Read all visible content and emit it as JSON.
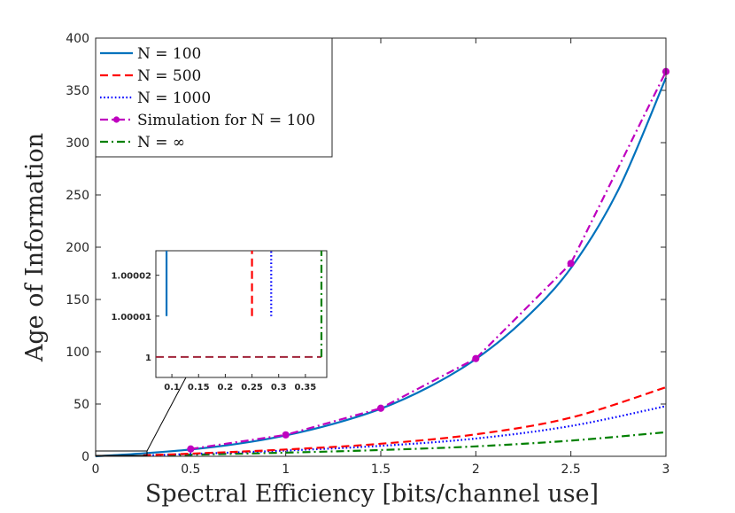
{
  "chart_data": {
    "type": "line",
    "xlabel": "Spectral Efficiency [bits/channel use]",
    "ylabel": "Age of Information",
    "xlim": [
      0,
      3
    ],
    "ylim": [
      0,
      400
    ],
    "xticks": [
      0,
      0.5,
      1,
      1.5,
      2,
      2.5,
      3
    ],
    "xtick_labels": [
      "0",
      "0.5",
      "1",
      "1.5",
      "2",
      "2.5",
      "3"
    ],
    "yticks": [
      0,
      50,
      100,
      150,
      200,
      250,
      300,
      350,
      400
    ],
    "ytick_labels": [
      "0",
      "50",
      "100",
      "150",
      "200",
      "250",
      "300",
      "350",
      "400"
    ],
    "legend_position": "top-left",
    "series": [
      {
        "name": "N = 100",
        "legend_label": "N = 100",
        "color": "#0072BD",
        "style": "solid",
        "marker": "none",
        "x": [
          0,
          0.25,
          0.5,
          0.75,
          1,
          1.25,
          1.5,
          1.75,
          2,
          2.25,
          2.5,
          2.75,
          3
        ],
        "y": [
          0,
          2.8,
          6.5,
          12.0,
          20.0,
          31.0,
          45.5,
          66.0,
          93.0,
          130.0,
          180.0,
          255.0,
          362.0
        ]
      },
      {
        "name": "N = 500",
        "legend_label": "N = 500",
        "color": "#FF0000",
        "style": "dashed",
        "marker": "none",
        "x": [
          0.25,
          0.5,
          1,
          1.5,
          2,
          2.5,
          3
        ],
        "y": [
          1,
          2.5,
          6.5,
          12.0,
          21.0,
          37.0,
          66.0
        ]
      },
      {
        "name": "N = 1000",
        "legend_label": "N = 1000",
        "color": "#0000FF",
        "style": "dotted",
        "marker": "none",
        "x": [
          0.28,
          0.5,
          1,
          1.5,
          2,
          2.5,
          3
        ],
        "y": [
          1,
          2.2,
          5.5,
          10.0,
          17.0,
          29.0,
          48.0
        ]
      },
      {
        "name": "Simulation for N = 100",
        "legend_label": "Simulation for N = 100",
        "color": "#BF00BF",
        "style": "dashdot",
        "marker": "circle",
        "x": [
          0.5,
          1,
          1.5,
          2,
          2.5,
          3
        ],
        "y": [
          7.0,
          20.5,
          46.0,
          93.5,
          184.5,
          368.0
        ]
      },
      {
        "name": "N = ∞",
        "legend_label": "N = ∞",
        "color": "#008000",
        "style": "dashdot",
        "marker": "none",
        "x": [
          0.38,
          0.5,
          1,
          1.5,
          2,
          2.5,
          3
        ],
        "y": [
          1,
          1.5,
          3.5,
          6.0,
          9.5,
          15.0,
          23.0
        ]
      }
    ],
    "inset": {
      "xlim": [
        0.07,
        0.39
      ],
      "ylim": [
        0.999995,
        1.000026
      ],
      "xticks": [
        0.1,
        0.15,
        0.2,
        0.25,
        0.3,
        0.35
      ],
      "xtick_labels": [
        "0.1",
        "0.15",
        "0.2",
        "0.25",
        "0.3",
        "0.35"
      ],
      "yticks": [
        1,
        1.00001,
        1.00002
      ],
      "ytick_labels": [
        "1",
        "1.00001",
        "1.00002"
      ],
      "baseline": {
        "color": "#A0243A",
        "style": "dashed",
        "x": [
          0.07,
          0.38
        ],
        "y": [
          1,
          1
        ]
      },
      "series": [
        {
          "name": "N = 100",
          "color": "#0072BD",
          "style": "solid",
          "x": [
            0.09,
            0.09
          ],
          "y": [
            1.00001,
            1.000026
          ]
        },
        {
          "name": "N = 500",
          "color": "#FF0000",
          "style": "dashed",
          "x": [
            0.25,
            0.25
          ],
          "y": [
            1.00001,
            1.000026
          ]
        },
        {
          "name": "N = 1000",
          "color": "#0000FF",
          "style": "dotted",
          "x": [
            0.286,
            0.286
          ],
          "y": [
            1.00001,
            1.000026
          ]
        },
        {
          "name": "N = ∞",
          "color": "#008000",
          "style": "dashdot",
          "x": [
            0.38,
            0.38
          ],
          "y": [
            1,
            1.000026
          ]
        }
      ]
    }
  }
}
